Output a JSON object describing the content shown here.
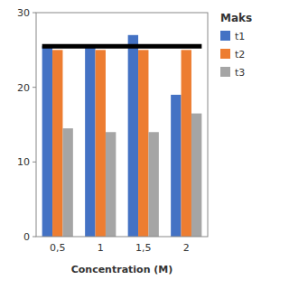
{
  "chart_data": {
    "type": "bar",
    "categories": [
      "0,5",
      "1",
      "1,5",
      "2"
    ],
    "series": [
      {
        "name": "t1",
        "color": "#4472C4",
        "values": [
          25.5,
          25.5,
          27.0,
          19.0
        ]
      },
      {
        "name": "t2",
        "color": "#ED7D31",
        "values": [
          25.0,
          25.0,
          25.0,
          25.0
        ]
      },
      {
        "name": "t3",
        "color": "#A5A5A5",
        "values": [
          14.5,
          14.0,
          14.0,
          16.5
        ]
      }
    ],
    "xlabel": "Concentration (M)",
    "legend_title": "Maks",
    "legend": "right",
    "reference_line": 25.5,
    "ylim": [
      0,
      30
    ],
    "yticks": [
      0,
      10,
      20,
      30
    ],
    "grid": false
  }
}
